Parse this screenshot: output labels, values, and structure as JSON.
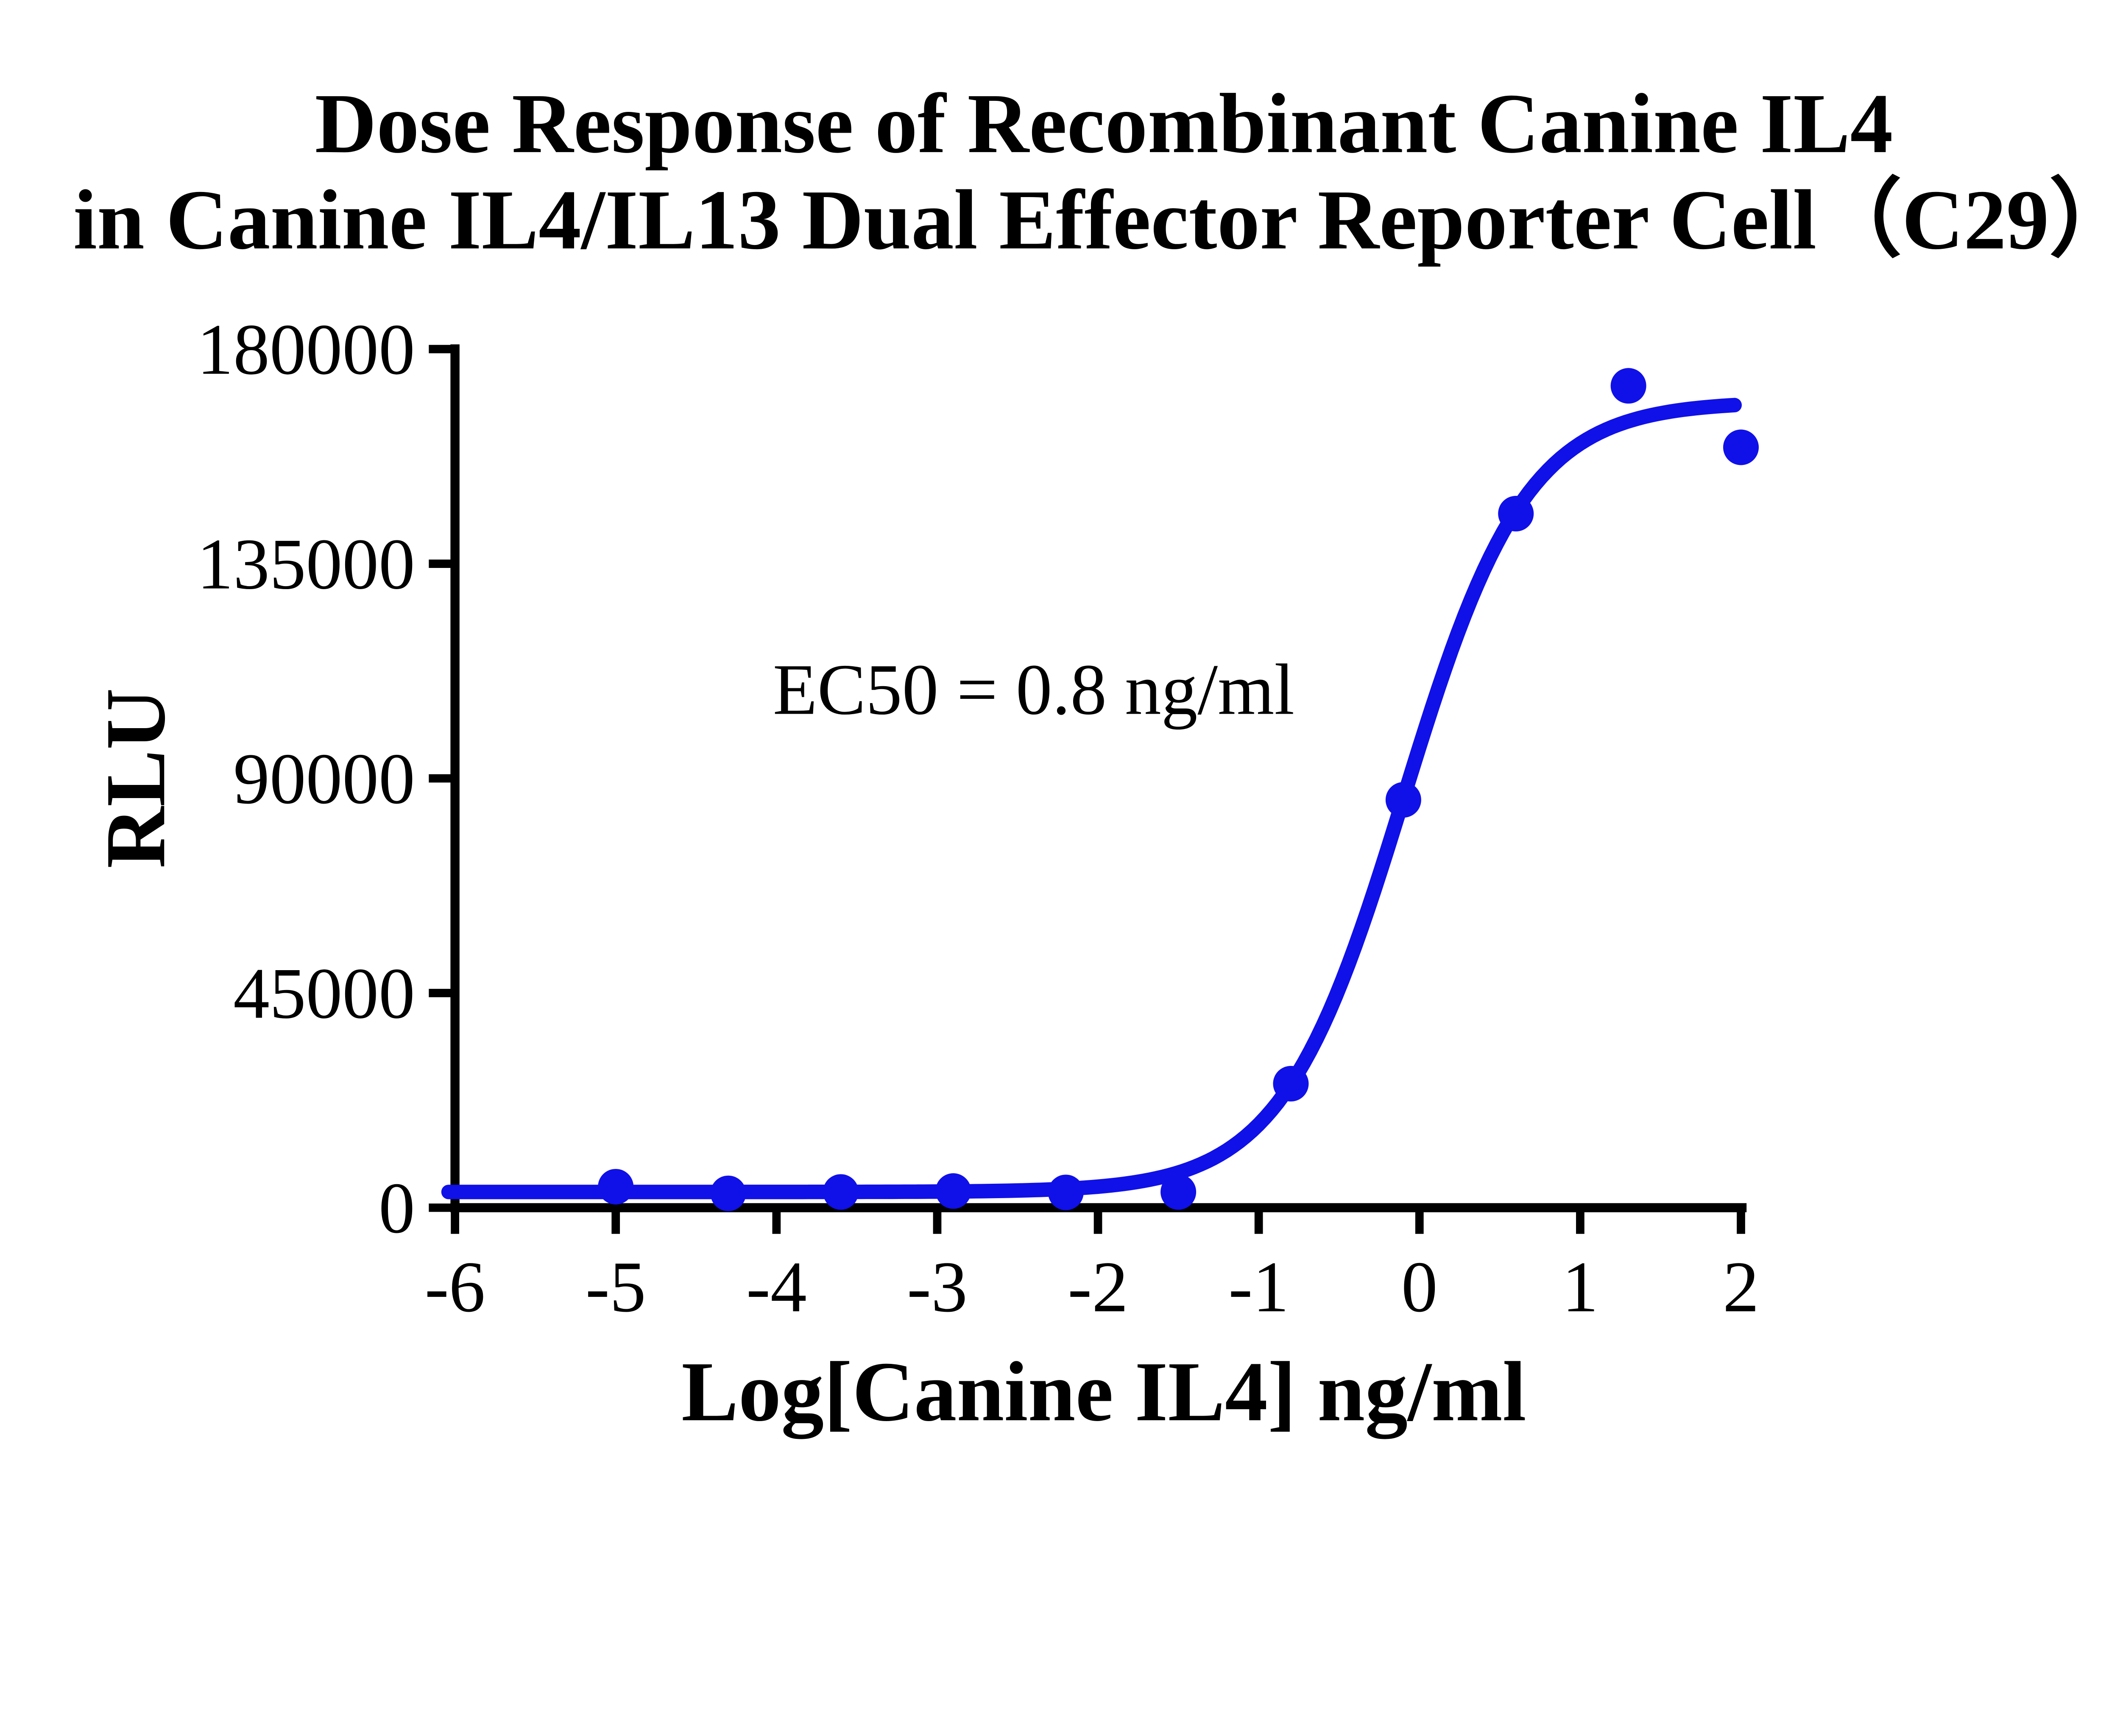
{
  "chart_data": {
    "type": "scatter",
    "title_line1": "Dose Response of Recombinant Canine IL4",
    "title_line2": "in Canine IL4/IL13 Dual Effector Reporter Cell（C29）",
    "xlabel": "Log[Canine IL4] ng/ml",
    "ylabel": "RLU",
    "annotation": "EC50 = 0.8 ng/ml",
    "x_ticks": [
      -6,
      -5,
      -4,
      -3,
      -2,
      -1,
      0,
      1,
      2
    ],
    "y_ticks": [
      0,
      45000,
      90000,
      135000,
      180000
    ],
    "xlim": [
      -6,
      2.15
    ],
    "ylim": [
      0,
      180000
    ],
    "grid": false,
    "legend_position": "none",
    "series": [
      {
        "name": "Recombinant Canine IL4",
        "marker": "circle",
        "x": [
          -5,
          -4.3,
          -3.6,
          -2.9,
          -2.2,
          -1.5,
          -0.8,
          -0.1,
          0.6,
          1.3,
          2.0
        ],
        "y": [
          4400,
          3000,
          3300,
          3500,
          3200,
          3300,
          26000,
          85500,
          145500,
          172300,
          159400
        ]
      }
    ],
    "fit_curve": {
      "model": "4PL",
      "bottom": 3300,
      "top": 169000,
      "ec50_ng_ml": 0.8,
      "log_ec50": -0.097,
      "hill": 1.14,
      "x_start": -6.04,
      "x_end": 1.96
    },
    "colors": {
      "curve": "#1010e8",
      "axis": "#000000",
      "text": "#000000",
      "background": "#ffffff"
    }
  }
}
